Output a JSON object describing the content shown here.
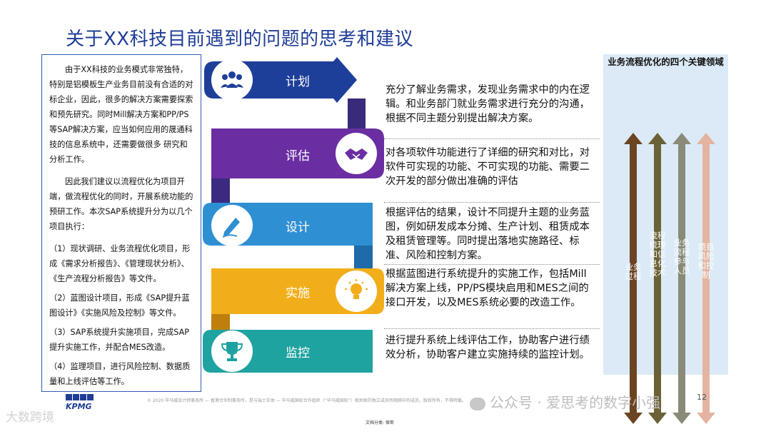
{
  "title": "关于XX科技目前遇到的问题的思考和建议",
  "left_panel": {
    "p1": "由于XX科技的业务模式非常独特，特别是铝模板生产业务目前没有合适的对标企业，因此，很多的解决方案需要探索和预先研究。同时Mill解决方案和PP/PS等SAP解决方案，应当如何应用的晟通科技的信息系统中，还需要做很多 研究和分析工作。",
    "p2": "因此我们建议以流程优化为项目开端，做流程优化的同时，开展系统功能的预研工作。本次SAP系统提升分为以几个项目执行：",
    "p3": "（1）现状调研、业务流程优化项目，形成《需求分析报告》、《管理现状分析》、《生产流程分析报告》等文件。",
    "p4": "（2）蓝图设计项目，形成《SAP提升蓝图设计》《实施风险及控制》等文件。",
    "p5": "（3）SAP系统提升实施项目，完成SAP提升实施工作，并配合MES改造。",
    "p6": "（4）监理项目，进行风险控制、数据质量和上线评估等工作。"
  },
  "steps": [
    {
      "label": "计划",
      "icon": "team-icon",
      "color": "#1e3f99",
      "desc": "充分了解业务需求，发现业务需求中的内在逻辑。和业务部门就业务需求进行充分的沟通，根据不同主题分别提出解决方案。"
    },
    {
      "label": "评估",
      "icon": "handshake-icon",
      "color": "#6a2ea2",
      "desc": "对各项软件功能进行了详细的研究和对比，对软件可实现的功能、不可实现的功能、需要二次开发的部分做出准确的评估"
    },
    {
      "label": "设计",
      "icon": "pen-icon",
      "color": "#2f8fd3",
      "desc": "根据评估的结果，设计不同提升主题的业务蓝图，例如研发成本分摊、生产计划、租赁成本及租赁管理等。同时提出落地实施路径、标准、风险和控制方案。"
    },
    {
      "label": "实施",
      "icon": "lightbulb-icon",
      "color": "#f2ae1a",
      "desc": "根据蓝图进行系统提升的实施工作，包括Mill解决方案上线，PP/PS模块启用和MES之间的接口开发，以及MES系统必要的改造工作。"
    },
    {
      "label": "监控",
      "icon": "trophy-icon",
      "color": "#1fa3a0",
      "desc": "进行提升系统上线评估工作，协助客户进行绩效分析，协助客户建立实施持续的监控计划。"
    }
  ],
  "right_panel": {
    "heading": "业务流程优化的四个关键领域",
    "arrows": [
      {
        "text": "业务过程",
        "color": "#6b4423"
      },
      {
        "text": "流程梳理和信息化技术",
        "color": "#6b6136"
      },
      {
        "text": "业务流程参与人员",
        "color": "#8a8a78"
      },
      {
        "text": "项目风险和控制",
        "color": "#e4b4a0"
      }
    ]
  },
  "footer": {
    "note": "© 2020 毕马威会计师事务所 — 香港合伙制事务所，是与瑞士实体 — 毕马威国际合作组织（“毕马威国际”）相关联的独立成员所网络中的成员。版权所有，不得转载。",
    "page": "12",
    "classification": "文档分类: 保密",
    "brand": "KPMG",
    "watermark_left": "大数跨境",
    "watermark_right": "公众号 · 爱思考的数字小强"
  }
}
